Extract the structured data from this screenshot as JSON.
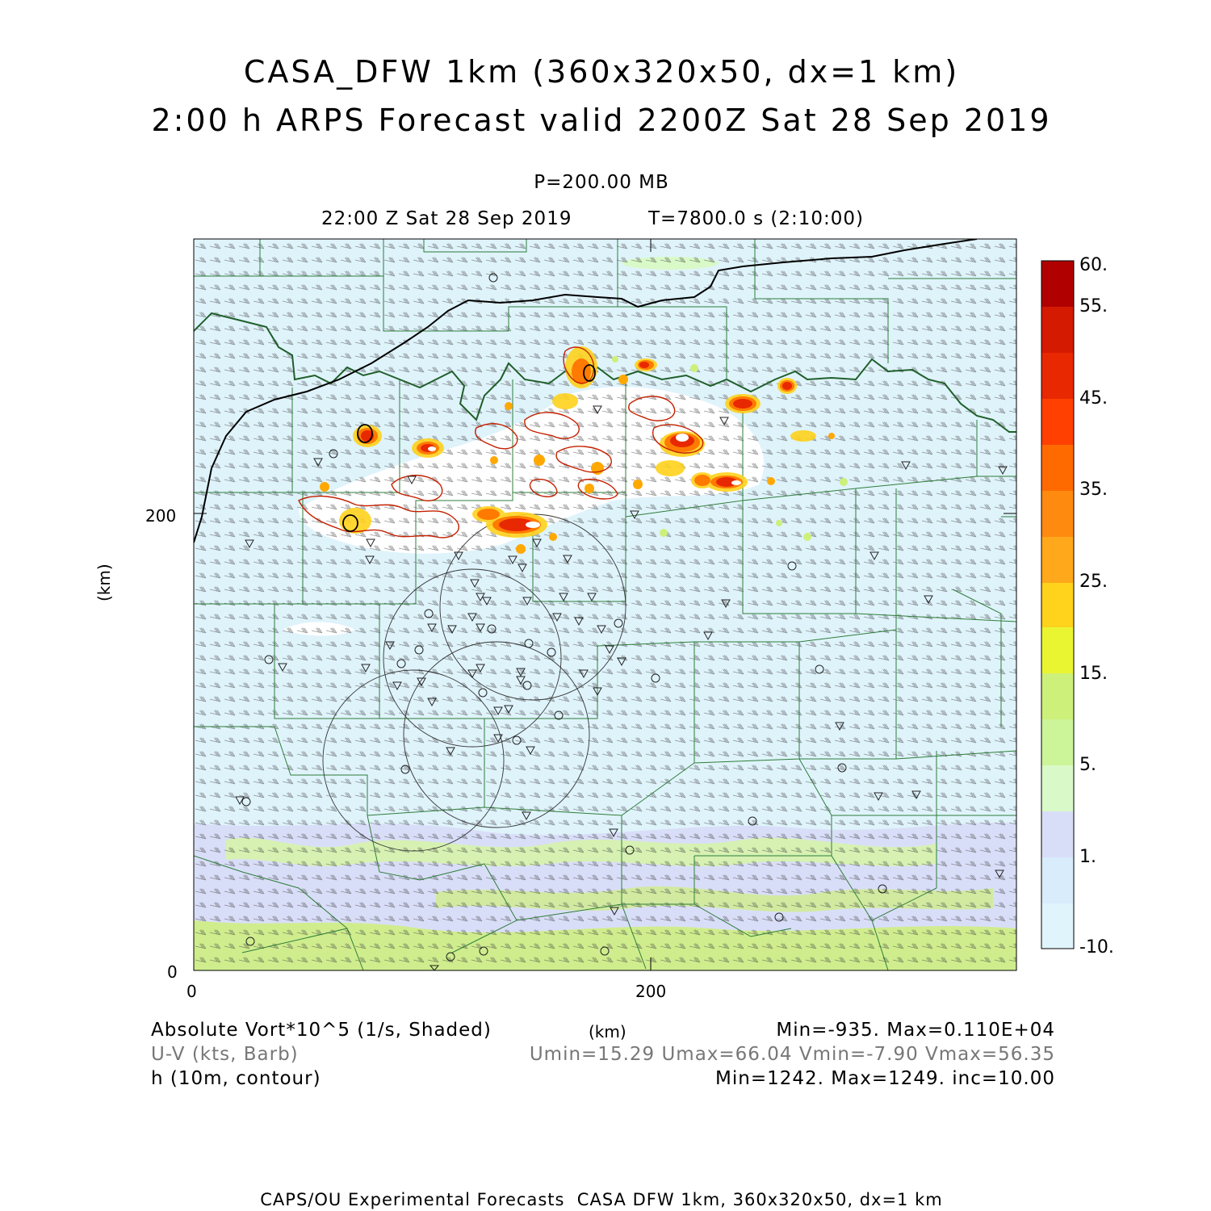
{
  "title": {
    "line1": "CASA_DFW 1km (360x320x50, dx=1 km)",
    "line2": "2:00 h ARPS Forecast valid 2200Z Sat 28 Sep 2019"
  },
  "level": "P=200.00 MB",
  "valid_time": "22:00 Z Sat 28 Sep 2019",
  "sim_time": "T=7800.0 s (2:10:00)",
  "axes": {
    "y_label": "(km)",
    "x_label": "(km)",
    "x_ticks": [
      "0",
      "200"
    ],
    "y_ticks": [
      "0",
      "200"
    ]
  },
  "colorbar": {
    "labels": [
      "60.",
      "55.",
      "45.",
      "35.",
      "25.",
      "15.",
      "5.",
      "1.",
      "-10."
    ],
    "colors": [
      "#b00000",
      "#d41a00",
      "#e82800",
      "#ff4000",
      "#ff7a00",
      "#ffa800",
      "#ffd21c",
      "#eaf532",
      "#cdf07a",
      "#ccf59a",
      "#d9fac8",
      "#d9def8",
      "#d8ecfc",
      "#e0f4fc"
    ]
  },
  "legend": {
    "field1": "Absolute Vort*10^5 (1/s, Shaded)",
    "field1_stats": "Min=-935. Max=0.110E+04",
    "field2": "U-V (kts, Barb)",
    "field2_stats": "Umin=15.29 Umax=66.04 Vmin=-7.90 Vmax=56.35",
    "field3": "h (10m, contour)",
    "field3_stats": "Min=1242. Max=1249. inc=10.00",
    "units": "(km)"
  },
  "footer": "CAPS/OU Experimental Forecasts  CASA DFW 1km, 360x320x50, dx=1 km",
  "colors": {
    "background_field": "#dff3fb",
    "county_lines": "#2e7d3a",
    "state_line": "#1f5f2a",
    "contour": "#000000"
  },
  "stats": {
    "vort_min": -935,
    "vort_max": 1100,
    "umin": 15.29,
    "umax": 66.04,
    "vmin": -7.9,
    "vmax": 56.35,
    "h_min": 1242,
    "h_max": 1249,
    "h_inc": 10.0
  }
}
